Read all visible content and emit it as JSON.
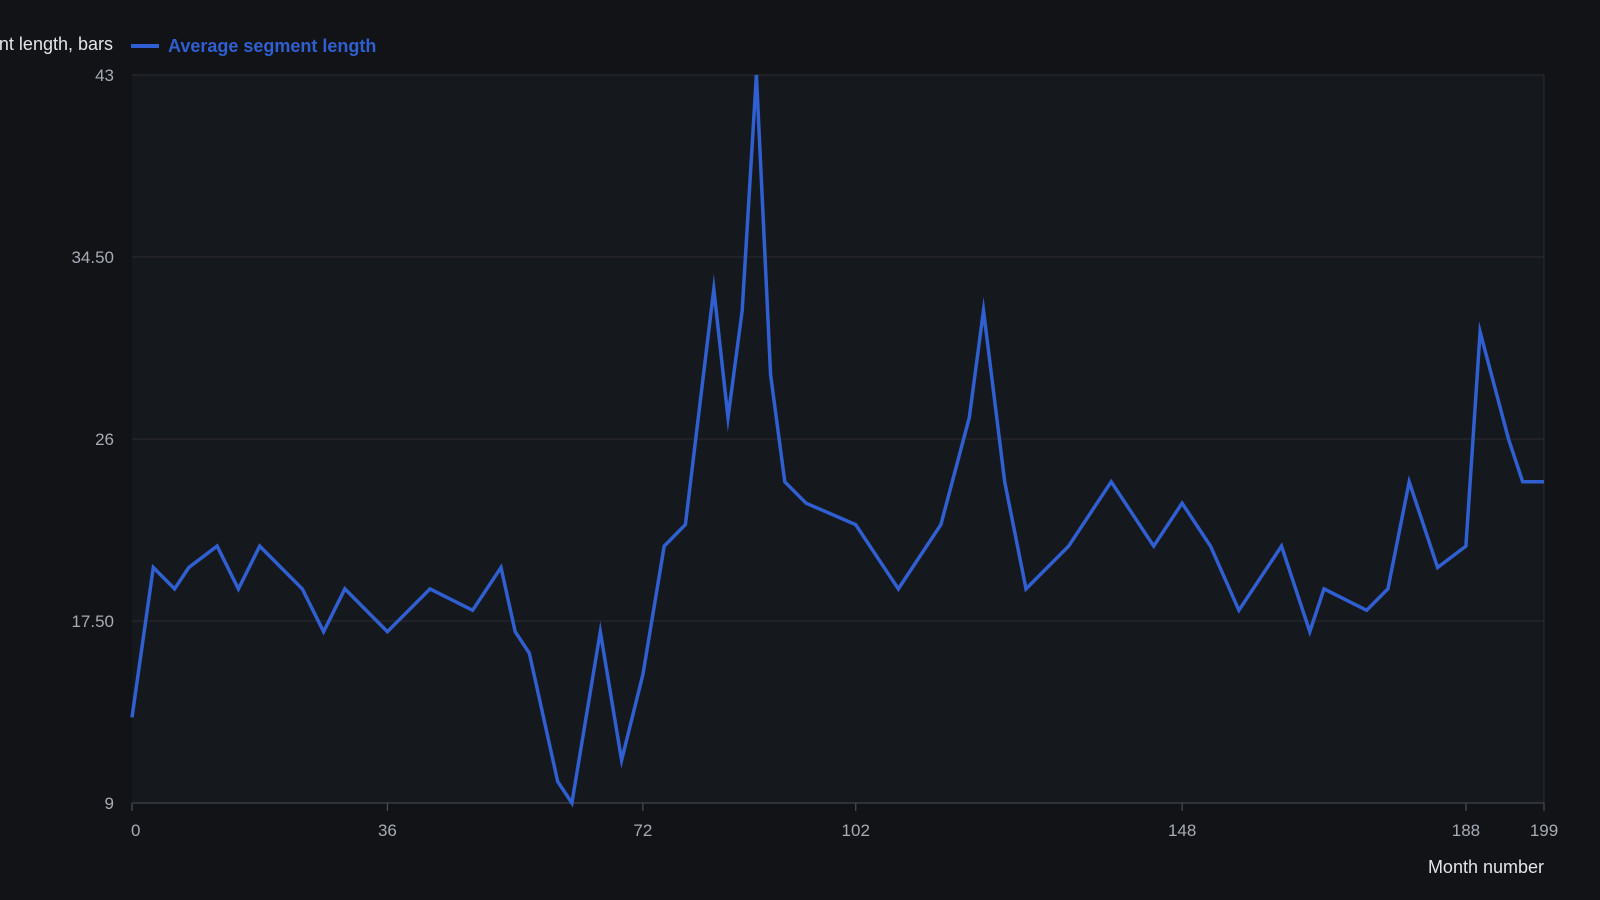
{
  "chart_data": {
    "type": "line",
    "ylabel": "Average segment length, bars",
    "xlabel": "Month number",
    "xlim": [
      0,
      199
    ],
    "ylim": [
      9,
      43
    ],
    "x_ticks": [
      "0",
      "36",
      "72",
      "102",
      "148",
      "188",
      "199"
    ],
    "y_ticks": [
      "9",
      "17.50",
      "26",
      "34.50",
      "43"
    ],
    "grid": true,
    "legend_position": "top-left",
    "series": [
      {
        "name": "Average segment length",
        "color": "#2f5fd0",
        "x": [
          0,
          3,
          6,
          8,
          12,
          15,
          18,
          24,
          27,
          30,
          36,
          42,
          48,
          52,
          54,
          56,
          60,
          62,
          66,
          69,
          72,
          75,
          78,
          82,
          84,
          86,
          88,
          90,
          92,
          95,
          102,
          108,
          114,
          118,
          120,
          123,
          126,
          132,
          138,
          144,
          148,
          152,
          156,
          162,
          166,
          168,
          174,
          177,
          180,
          184,
          188,
          190,
          194,
          196,
          199
        ],
        "values": [
          13,
          20,
          19,
          20,
          21,
          19,
          21,
          19,
          17,
          19,
          17,
          19,
          18,
          20,
          17,
          16,
          10,
          9,
          17,
          11,
          15,
          21,
          22,
          33,
          27,
          32,
          43,
          29,
          24,
          23,
          22,
          19,
          22,
          27,
          32,
          24,
          19,
          21,
          24,
          21,
          23,
          21,
          18,
          21,
          17,
          19,
          18,
          19,
          24,
          20,
          21,
          31,
          26,
          24,
          24
        ]
      }
    ]
  }
}
